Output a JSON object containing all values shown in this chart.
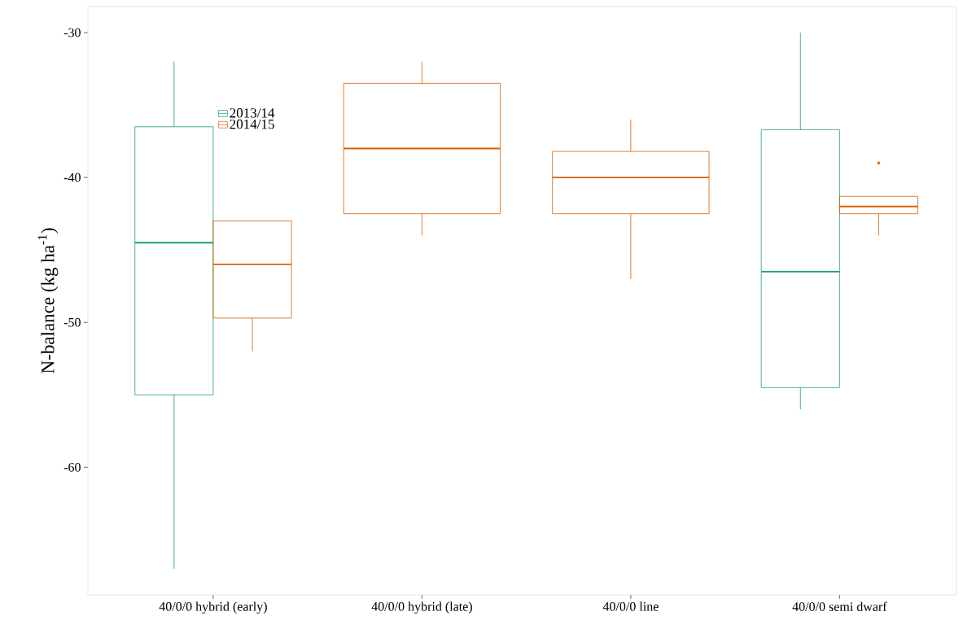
{
  "chart_data": {
    "type": "box",
    "ylabel": "N-balance (kg ha$^{-1}$)",
    "categories": [
      "40/0/0 hybrid (early)",
      "40/0/0 hybrid (late)",
      "40/0/0 line",
      "40/0/0 semi dwarf"
    ],
    "ylim": [
      -68.8,
      -28.2
    ],
    "yticks": [
      -60,
      -50,
      -40,
      -30
    ],
    "grid": false,
    "legend": "top left",
    "series": [
      {
        "name": "2013/14",
        "color": "#1b9e77",
        "boxes": [
          {
            "low": -67.0,
            "q1": -55.0,
            "median": -44.5,
            "q3": -36.5,
            "high": -32.0
          },
          null,
          null,
          {
            "low": -56.0,
            "q1": -54.5,
            "median": -46.5,
            "q3": -36.7,
            "high": -30.0
          }
        ]
      },
      {
        "name": "2014/15",
        "color": "#d95f02",
        "boxes": [
          {
            "low": -52.0,
            "q1": -49.7,
            "median": -46.0,
            "q3": -43.0,
            "high": -43.0
          },
          {
            "low": -44.0,
            "q1": -42.5,
            "median": -38.0,
            "q3": -33.5,
            "high": -32.0
          },
          {
            "low": -47.0,
            "q1": -42.5,
            "median": -40.0,
            "q3": -38.2,
            "high": -36.0
          },
          {
            "low": -44.0,
            "q1": -42.5,
            "median": -42.0,
            "q3": -41.3,
            "high": -41.3,
            "outliers": [
              -39.0
            ]
          }
        ]
      }
    ]
  }
}
